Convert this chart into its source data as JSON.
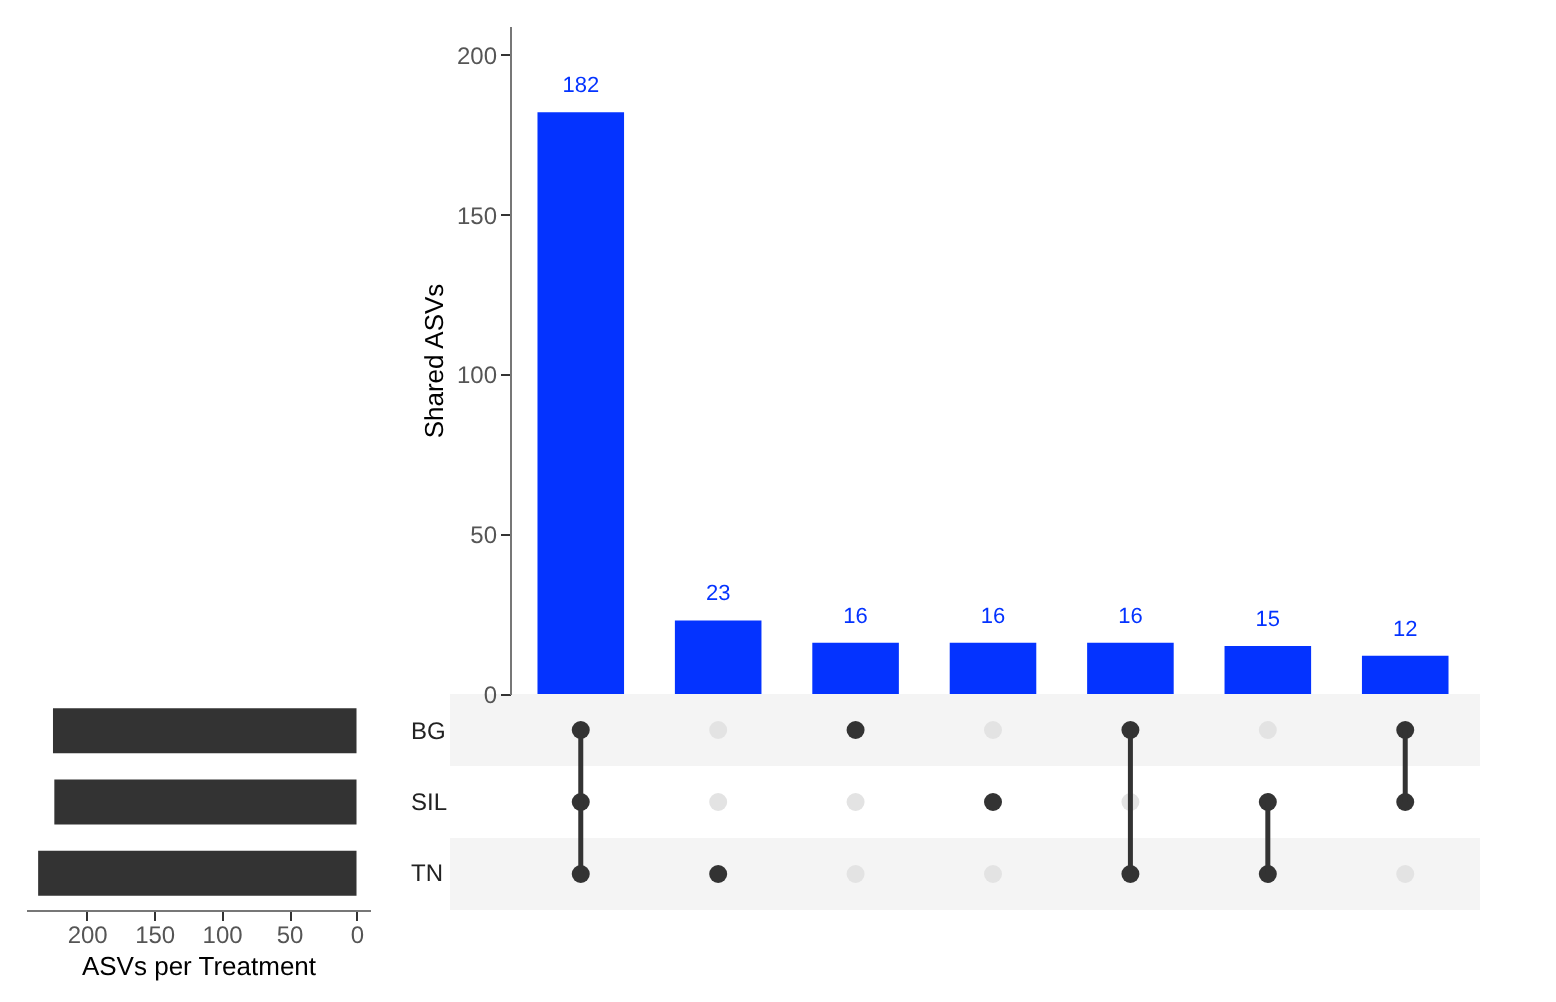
{
  "chart_data": [
    {
      "type": "bar",
      "ylabel": "Shared ASVs",
      "categories": [
        null,
        null,
        null,
        null,
        null,
        null,
        null
      ],
      "values": [
        182,
        23,
        16,
        16,
        16,
        15,
        12
      ],
      "color": "#0433ff",
      "ylim": [
        0,
        209
      ],
      "yticks": [
        0,
        50,
        100,
        150,
        200
      ],
      "data_labels": true,
      "tick_labels": "y"
    },
    {
      "type": "bar",
      "orientation": "horizontal",
      "xlabel": "ASVs per Treatment",
      "categories": [
        "BG",
        "SIL",
        "TN"
      ],
      "values": [
        225,
        224,
        236
      ],
      "color": "#333333",
      "xlim": [
        245,
        -10
      ],
      "xticks": [
        0,
        50,
        100,
        150,
        200
      ]
    }
  ]
}
